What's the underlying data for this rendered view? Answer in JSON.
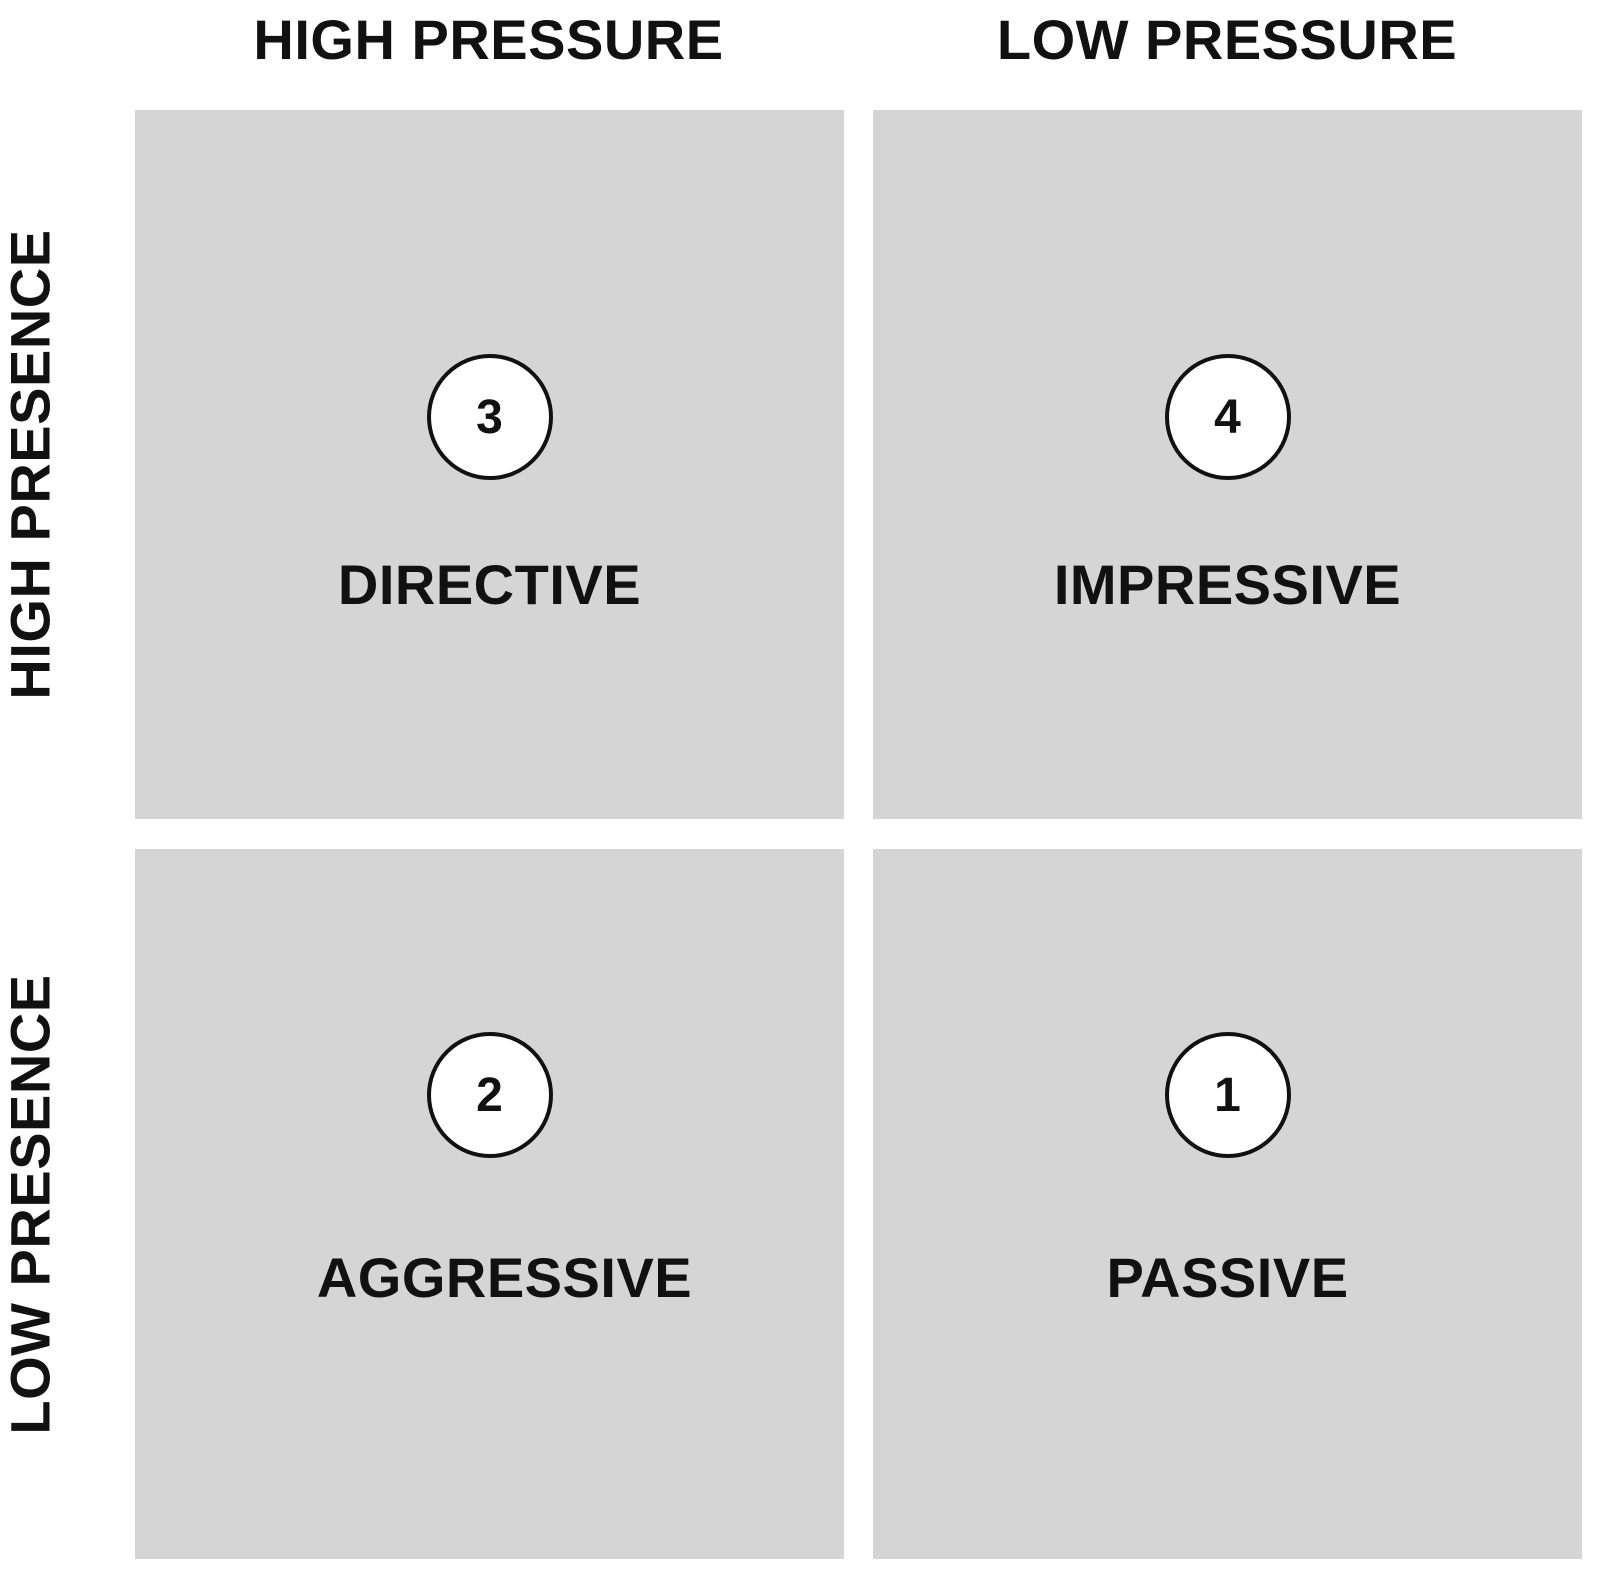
{
  "columns": [
    "HIGH PRESSURE",
    "LOW PRESSURE"
  ],
  "rows": [
    "HIGH PRESENCE",
    "LOW PRESENCE"
  ],
  "quadrants": [
    {
      "number": "3",
      "label": "DIRECTIVE"
    },
    {
      "number": "4",
      "label": "IMPRESSIVE"
    },
    {
      "number": "2",
      "label": "AGGRESSIVE"
    },
    {
      "number": "1",
      "label": "PASSIVE"
    }
  ],
  "colors": {
    "quadrant_fill": "#d5d5d5",
    "text": "#111111",
    "badge_fill": "#ffffff",
    "background": "#ffffff"
  }
}
